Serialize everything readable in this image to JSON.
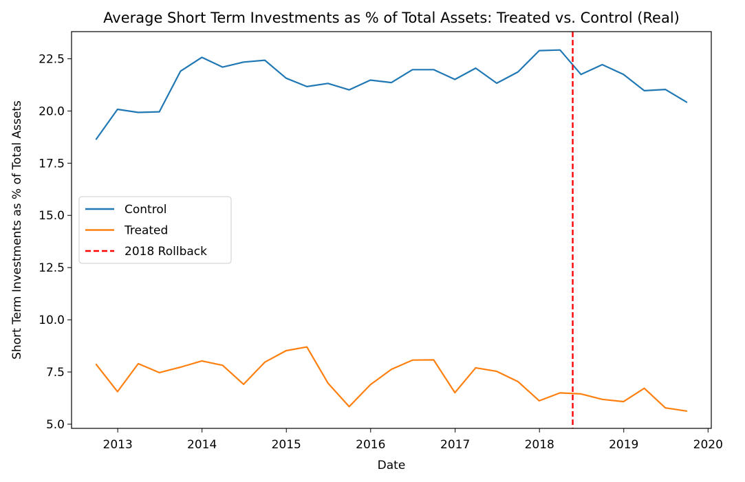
{
  "chart_data": {
    "type": "line",
    "title": "Average Short Term Investments as % of Total Assets: Treated vs. Control (Real)",
    "xlabel": "Date",
    "ylabel": "Short Term Investments as % of Total Assets",
    "xlim": [
      "2012-06-15",
      "2020-01-15"
    ],
    "ylim": [
      4.8,
      23.8
    ],
    "x_ticks": [
      "2013",
      "2014",
      "2015",
      "2016",
      "2017",
      "2018",
      "2019",
      "2020"
    ],
    "y_ticks": [
      "5.0",
      "7.5",
      "10.0",
      "12.5",
      "15.0",
      "17.5",
      "20.0",
      "22.5"
    ],
    "x": [
      "2012-09-30",
      "2012-12-31",
      "2013-03-31",
      "2013-06-30",
      "2013-09-30",
      "2013-12-31",
      "2014-03-31",
      "2014-06-30",
      "2014-09-30",
      "2014-12-31",
      "2015-03-31",
      "2015-06-30",
      "2015-09-30",
      "2015-12-31",
      "2016-03-31",
      "2016-06-30",
      "2016-09-30",
      "2016-12-31",
      "2017-03-31",
      "2017-06-30",
      "2017-09-30",
      "2017-12-31",
      "2018-03-31",
      "2018-06-30",
      "2018-09-30",
      "2018-12-31",
      "2019-03-31",
      "2019-06-30",
      "2019-09-30"
    ],
    "series": [
      {
        "name": "Control",
        "color": "#1f77b4",
        "values": [
          18.65,
          20.08,
          19.93,
          19.96,
          21.91,
          22.57,
          22.1,
          22.34,
          22.43,
          21.57,
          21.17,
          21.32,
          21.01,
          21.48,
          21.36,
          21.98,
          21.98,
          21.51,
          22.05,
          21.33,
          21.87,
          22.89,
          22.92,
          21.75,
          22.22,
          21.75,
          20.97,
          21.03,
          20.42
        ]
      },
      {
        "name": "Treated",
        "color": "#ff7f0e",
        "values": [
          7.86,
          6.56,
          7.9,
          7.47,
          7.73,
          8.03,
          7.82,
          6.91,
          7.97,
          8.52,
          8.7,
          6.97,
          5.84,
          6.89,
          7.63,
          8.07,
          8.08,
          6.51,
          7.7,
          7.53,
          7.04,
          6.12,
          6.5,
          6.45,
          6.19,
          6.08,
          6.72,
          5.78,
          5.63
        ]
      }
    ],
    "reference_lines": [
      {
        "name": "2018 Rollback",
        "x": "2018-05-25",
        "color": "#ff0000",
        "style": "dashed"
      }
    ],
    "legend": {
      "position": "center-left",
      "entries": [
        "Control",
        "Treated",
        "2018 Rollback"
      ]
    },
    "grid": false
  }
}
